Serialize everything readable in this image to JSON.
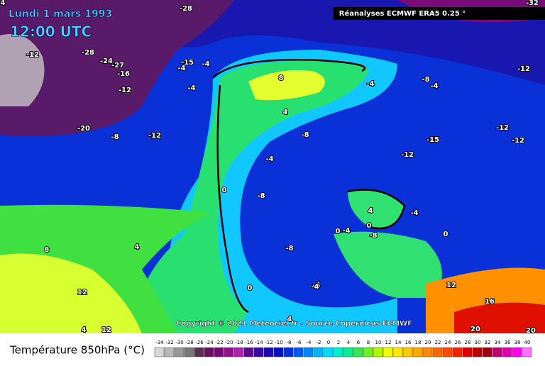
{
  "header": {
    "date": "Lundi 1 mars 1993",
    "time": "12:00 UTC",
    "source": "Réanalyses ECMWF ERA5 0.25 °"
  },
  "copyright": "Copyright © 2021 Meteociel.fr - Source Copernicus ECMWF",
  "contour_labels": [
    -28,
    -32,
    -12,
    -28,
    -24,
    -27,
    -16,
    -12,
    -4,
    -15,
    -4,
    -20,
    -8,
    -12,
    -4,
    8,
    4,
    -4,
    -8,
    -4,
    -8,
    -12,
    -15,
    -12,
    -12,
    -12,
    -4,
    -8,
    -4,
    0,
    -8,
    0,
    4,
    -4,
    -8,
    0,
    -4,
    4,
    4,
    8,
    4,
    12,
    12,
    16,
    20,
    20,
    0,
    0,
    -4,
    4,
    12
  ],
  "legend": {
    "title": "Température 850hPa (°C)",
    "ticks": [
      -34,
      -32,
      -30,
      -28,
      -26,
      -24,
      -22,
      -20,
      -18,
      -16,
      -14,
      -12,
      -10,
      -8,
      -6,
      -4,
      -2,
      0,
      2,
      4,
      6,
      8,
      10,
      12,
      14,
      16,
      18,
      20,
      22,
      24,
      26,
      28,
      30,
      32,
      34,
      36,
      38,
      40
    ],
    "colors": [
      "#d8d8d8",
      "#b8b8b8",
      "#989898",
      "#787878",
      "#5a3050",
      "#6a1060",
      "#7a0a78",
      "#94108e",
      "#b020b0",
      "#5a0a90",
      "#3a08a8",
      "#2008b8",
      "#0010c8",
      "#0030e0",
      "#0058f8",
      "#0088ff",
      "#00b4ff",
      "#00dcff",
      "#00f0d0",
      "#00f090",
      "#30e850",
      "#70f020",
      "#b0f800",
      "#f0ff00",
      "#ffe800",
      "#ffc800",
      "#ffa800",
      "#ff8800",
      "#ff6800",
      "#ff4800",
      "#ff2000",
      "#e00000",
      "#c00000",
      "#a00010",
      "#c00070",
      "#e000b0",
      "#ff00f0",
      "#ff70ff"
    ]
  }
}
